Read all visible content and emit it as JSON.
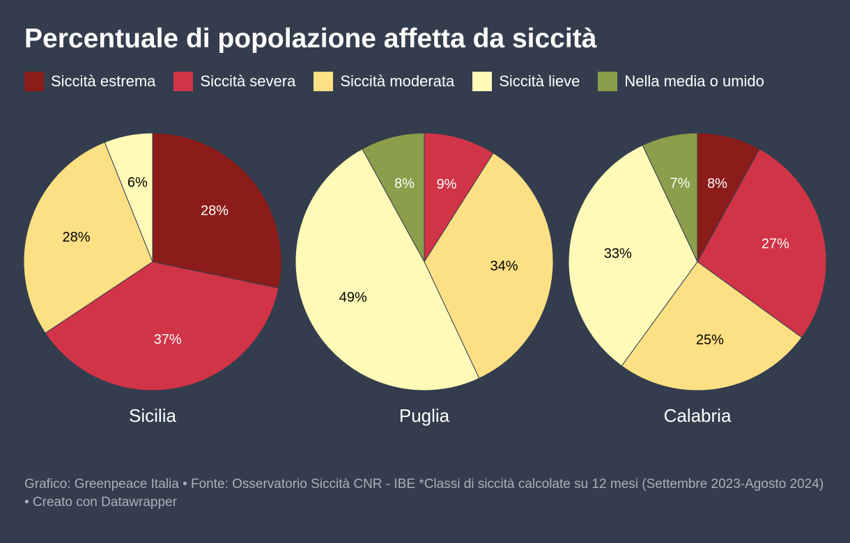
{
  "title": "Percentuale di popolazione affetta da siccità",
  "legend": {
    "labels": [
      "Siccità estrema",
      "Siccità severa",
      "Siccità moderata",
      "Siccità lieve",
      "Nella media o umido"
    ],
    "colors": [
      "#8b1c1a",
      "#d13447",
      "#fee084",
      "#fffab8",
      "#8c9d4b"
    ]
  },
  "footer": "Grafico: Greenpeace Italia • Fonte: Osservatorio Siccità CNR - IBE *Classi di siccità calcolate su 12 mesi (Settembre 2023-Agosto 2024) • Creato con Datawrapper",
  "chart_data": [
    {
      "type": "pie",
      "title": "Sicilia",
      "values": [
        28,
        37,
        28,
        6
      ],
      "value_labels": [
        "28%",
        "37%",
        "28%",
        "6%"
      ],
      "colors": [
        "#8b1c1a",
        "#d13447",
        "#fee084",
        "#fffab8"
      ]
    },
    {
      "type": "pie",
      "title": "Puglia",
      "values": [
        9,
        34,
        49,
        8
      ],
      "value_labels": [
        "9%",
        "34%",
        "49%",
        "8%"
      ],
      "colors": [
        "#d13447",
        "#fee084",
        "#fffab8",
        "#8c9d4b"
      ]
    },
    {
      "type": "pie",
      "title": "Calabria",
      "values": [
        8,
        27,
        25,
        33,
        7
      ],
      "value_labels": [
        "8%",
        "27%",
        "25%",
        "33%",
        "7%"
      ],
      "colors": [
        "#8b1c1a",
        "#d13447",
        "#fee084",
        "#fffab8",
        "#8c9d4b"
      ]
    }
  ]
}
